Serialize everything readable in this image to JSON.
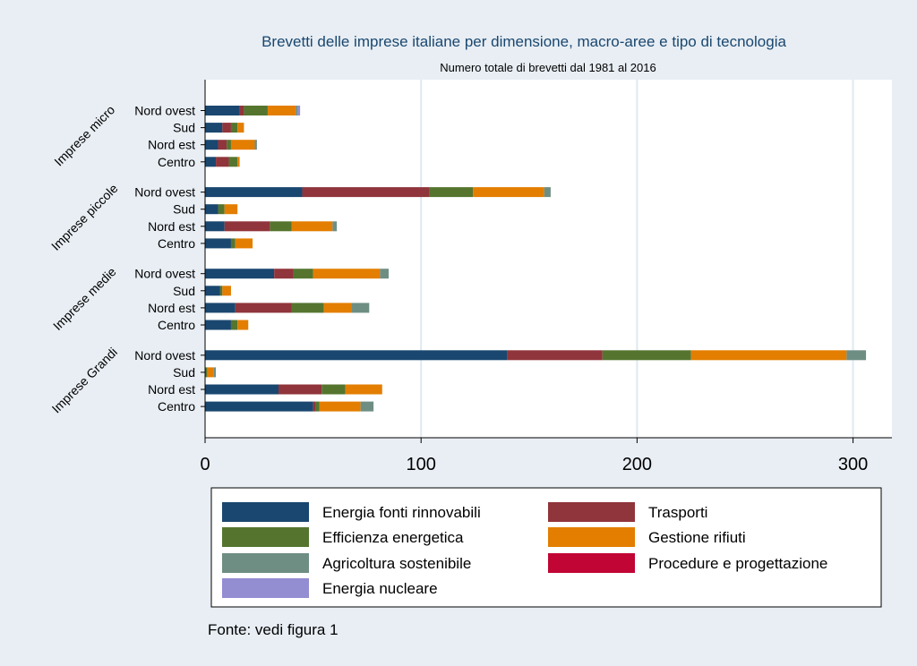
{
  "chart_data": {
    "type": "bar",
    "orientation": "horizontal",
    "stacked": true,
    "title": "Brevetti delle imprese italiane per dimensione, macro-aree e tipo di tecnologia",
    "subtitle": "Numero totale di brevetti dal 1981 al 2016",
    "xlim": [
      0,
      318
    ],
    "xticks": [
      0,
      100,
      200,
      300
    ],
    "grid": true,
    "legend_position": "bottom",
    "source": "Fonte: vedi figura 1",
    "series": [
      {
        "name": "Energia fonti rinnovabili",
        "color": "#1a476f"
      },
      {
        "name": "Trasporti",
        "color": "#90353b"
      },
      {
        "name": "Efficienza energetica",
        "color": "#55752f"
      },
      {
        "name": "Gestione rifiuti",
        "color": "#e37e00"
      },
      {
        "name": "Agricoltura sostenibile",
        "color": "#6e8e84"
      },
      {
        "name": "Procedure e progettazione",
        "color": "#c10534"
      },
      {
        "name": "Energia nucleare",
        "color": "#938dd2"
      }
    ],
    "groups": [
      {
        "label": "Imprese micro",
        "rows": [
          {
            "label": "Nord ovest",
            "values": [
              16,
              2,
              11,
              13,
              1,
              0,
              1
            ]
          },
          {
            "label": "Sud",
            "values": [
              8,
              4,
              3,
              3,
              0,
              0,
              0
            ]
          },
          {
            "label": "Nord est",
            "values": [
              6,
              4,
              2,
              11,
              1,
              0,
              0
            ]
          },
          {
            "label": "Centro",
            "values": [
              5,
              6,
              4,
              1,
              0,
              0,
              0
            ]
          }
        ]
      },
      {
        "label": "Imprese piccole",
        "rows": [
          {
            "label": "Nord ovest",
            "values": [
              45,
              59,
              20,
              33,
              3,
              0,
              0
            ]
          },
          {
            "label": "Sud",
            "values": [
              6,
              0,
              3,
              6,
              0,
              0,
              0
            ]
          },
          {
            "label": "Nord est",
            "values": [
              9,
              21,
              10,
              19,
              2,
              0,
              0
            ]
          },
          {
            "label": "Centro",
            "values": [
              12,
              0,
              2,
              8,
              0,
              0,
              0
            ]
          }
        ]
      },
      {
        "label": "Imprese medie",
        "rows": [
          {
            "label": "Nord ovest",
            "values": [
              32,
              9,
              9,
              31,
              4,
              0,
              0
            ]
          },
          {
            "label": "Sud",
            "values": [
              7,
              0,
              1,
              4,
              0,
              0,
              0
            ]
          },
          {
            "label": "Nord est",
            "values": [
              14,
              26,
              15,
              13,
              8,
              0,
              0
            ]
          },
          {
            "label": "Centro",
            "values": [
              12,
              0,
              3,
              5,
              0,
              0,
              0
            ]
          }
        ]
      },
      {
        "label": "Imprese Grandi",
        "rows": [
          {
            "label": "Nord ovest",
            "values": [
              140,
              44,
              41,
              72,
              9,
              0,
              0
            ]
          },
          {
            "label": "Sud",
            "values": [
              0,
              0,
              1,
              3,
              1,
              0,
              0
            ]
          },
          {
            "label": "Nord est",
            "values": [
              34,
              20,
              11,
              17,
              0,
              0,
              0
            ]
          },
          {
            "label": "Centro",
            "values": [
              50,
              1,
              2,
              19,
              6,
              0,
              0
            ]
          }
        ]
      }
    ]
  }
}
